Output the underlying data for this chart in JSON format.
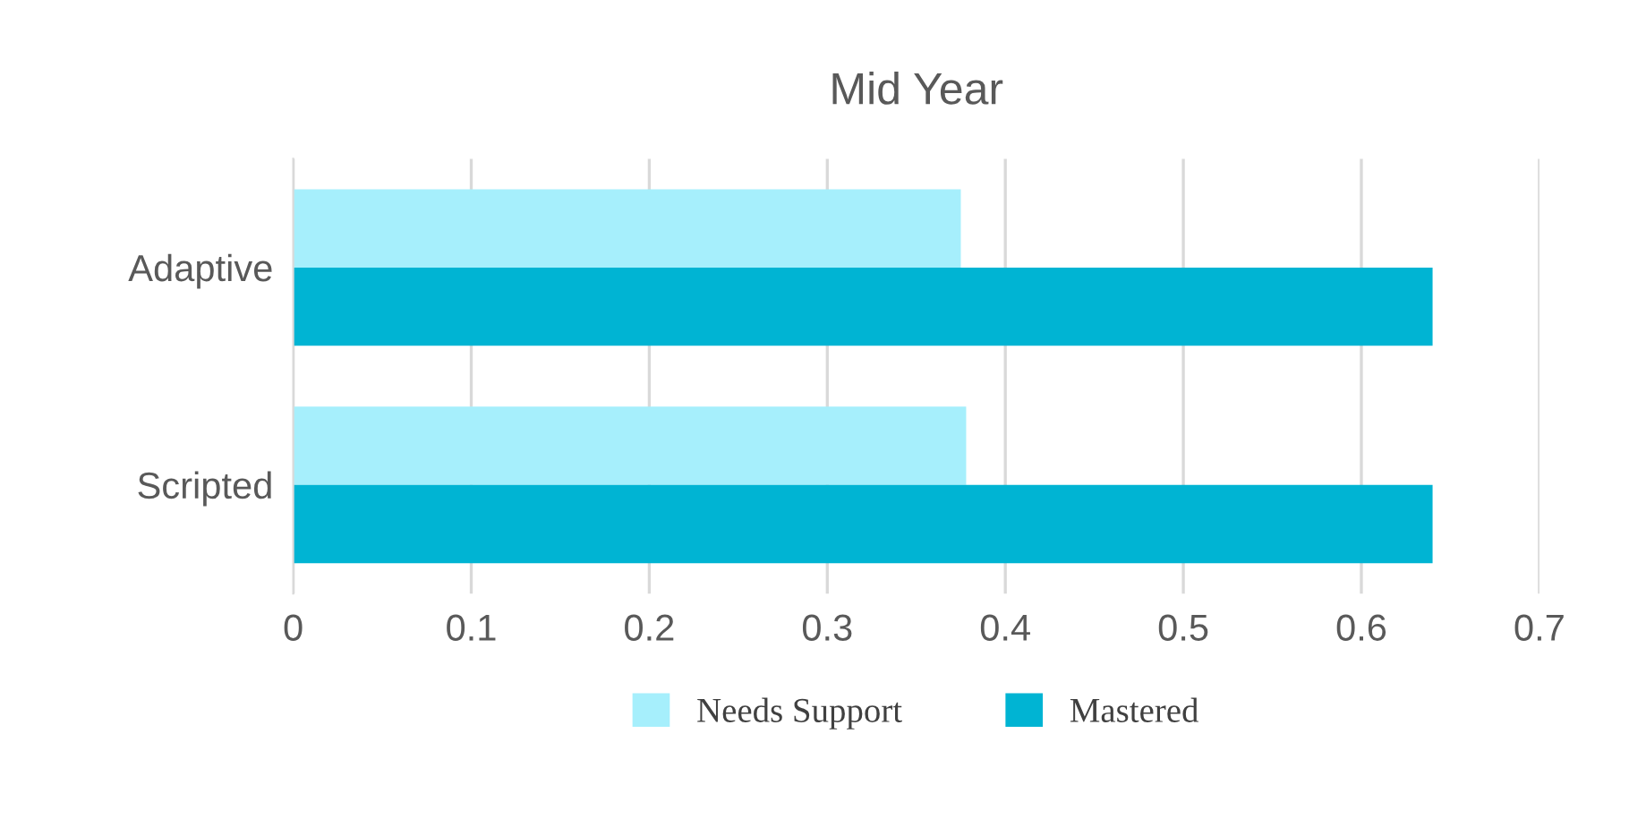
{
  "chart_data": {
    "type": "bar",
    "orientation": "horizontal",
    "title": "Mid Year",
    "categories": [
      "Adaptive",
      "Scripted"
    ],
    "series": [
      {
        "name": "Needs Support",
        "color": "#a6effc",
        "values": [
          0.375,
          0.378
        ]
      },
      {
        "name": "Mastered",
        "color": "#00b4d3",
        "values": [
          0.64,
          0.64
        ]
      }
    ],
    "xlim": [
      0,
      0.7
    ],
    "xticks": [
      0,
      0.1,
      0.2,
      0.3,
      0.4,
      0.5,
      0.6,
      0.7
    ],
    "grid": "x",
    "legend": "bottom"
  }
}
